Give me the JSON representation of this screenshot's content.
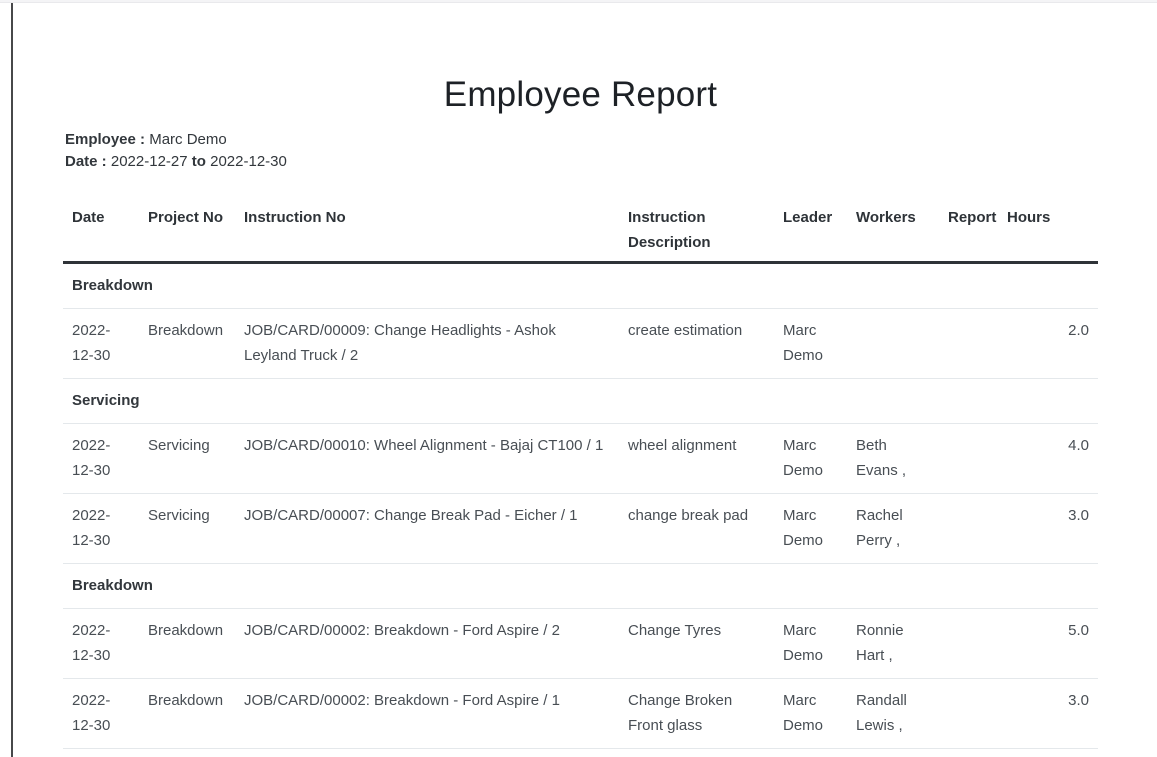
{
  "page": {
    "title": "Employee Report",
    "meta": {
      "employee_label": "Employee :",
      "employee_value": "Marc Demo",
      "date_label": "Date :",
      "date_from": "2022-12-27",
      "date_to_word": "to",
      "date_to": "2022-12-30"
    }
  },
  "table": {
    "columns": [
      "Date",
      "Project No",
      "Instruction No",
      "Instruction Description",
      "Leader",
      "Workers",
      "Report",
      "Hours"
    ],
    "groups": [
      {
        "name": "Breakdown",
        "rows": [
          {
            "date": "2022-12-30",
            "project_no": "Breakdown",
            "instruction_no": "JOB/CARD/00009: Change Headlights - Ashok Leyland Truck / 2",
            "instruction_description": "create estimation",
            "leader": "Marc Demo",
            "workers": "",
            "report": "",
            "hours": "2.0"
          }
        ]
      },
      {
        "name": "Servicing",
        "rows": [
          {
            "date": "2022-12-30",
            "project_no": "Servicing",
            "instruction_no": "JOB/CARD/00010: Wheel Alignment - Bajaj CT100 / 1",
            "instruction_description": "wheel alignment",
            "leader": "Marc Demo",
            "workers": "Beth Evans ,",
            "report": "",
            "hours": "4.0"
          },
          {
            "date": "2022-12-30",
            "project_no": "Servicing",
            "instruction_no": "JOB/CARD/00007: Change Break Pad - Eicher / 1",
            "instruction_description": "change break pad",
            "leader": "Marc Demo",
            "workers": "Rachel Perry ,",
            "report": "",
            "hours": "3.0"
          }
        ]
      },
      {
        "name": "Breakdown",
        "rows": [
          {
            "date": "2022-12-30",
            "project_no": "Breakdown",
            "instruction_no": "JOB/CARD/00002: Breakdown - Ford Aspire / 2",
            "instruction_description": "Change Tyres",
            "leader": "Marc Demo",
            "workers": "Ronnie Hart ,",
            "report": "",
            "hours": "5.0"
          },
          {
            "date": "2022-12-30",
            "project_no": "Breakdown",
            "instruction_no": "JOB/CARD/00002: Breakdown - Ford Aspire / 1",
            "instruction_description": "Change Broken Front glass",
            "leader": "Marc Demo",
            "workers": "Randall Lewis ,",
            "report": "",
            "hours": "3.0"
          }
        ]
      }
    ]
  }
}
